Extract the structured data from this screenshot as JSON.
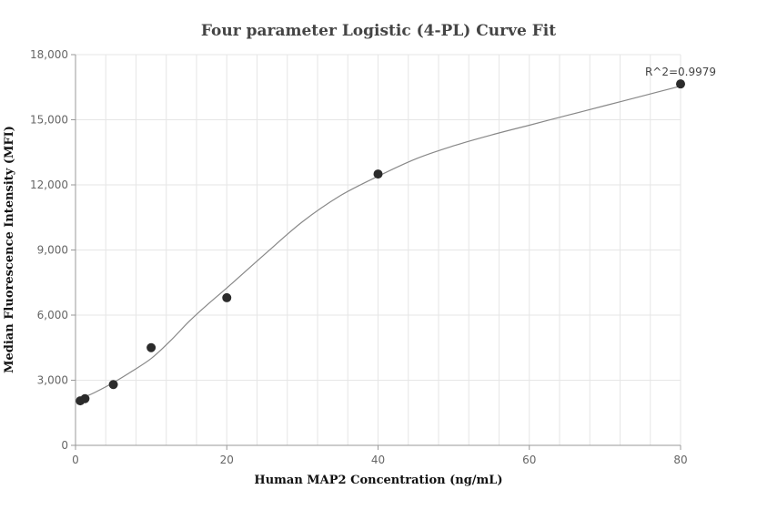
{
  "chart_data": {
    "type": "scatter",
    "title": "Four parameter Logistic (4-PL) Curve Fit",
    "xlabel": "Human MAP2 Concentration (ng/mL)",
    "ylabel": "Median Fluorescence Intensity (MFI)",
    "xlim": [
      0,
      80
    ],
    "ylim": [
      0,
      18000
    ],
    "x_ticks": [
      "0",
      "20",
      "40",
      "60",
      "80"
    ],
    "y_ticks": [
      "0",
      "3,000",
      "6,000",
      "9,000",
      "12,000",
      "15,000",
      "18,000"
    ],
    "grid": true,
    "points": [
      {
        "x": 0.625,
        "y": 2050
      },
      {
        "x": 1.25,
        "y": 2150
      },
      {
        "x": 5,
        "y": 2800
      },
      {
        "x": 10,
        "y": 4500
      },
      {
        "x": 20,
        "y": 6800
      },
      {
        "x": 40,
        "y": 12500
      },
      {
        "x": 80,
        "y": 16650
      }
    ],
    "fit_curve": {
      "model": "4-PL",
      "x": [
        0.625,
        1.25,
        2.5,
        5,
        7.5,
        10,
        12.5,
        15,
        17.5,
        20,
        25,
        30,
        35,
        40,
        45,
        50,
        55,
        60,
        65,
        70,
        75,
        80
      ],
      "y": [
        2150,
        2240,
        2430,
        2890,
        3420,
        4000,
        4800,
        5700,
        6500,
        7250,
        8800,
        10300,
        11500,
        12400,
        13200,
        13800,
        14300,
        14750,
        15200,
        15650,
        16100,
        16550
      ]
    },
    "annotation": "R^2=0.9979",
    "colors": {
      "point": "#2b2b2b",
      "curve": "#888888",
      "grid": "#e6e6e6",
      "axis": "#999999"
    }
  }
}
